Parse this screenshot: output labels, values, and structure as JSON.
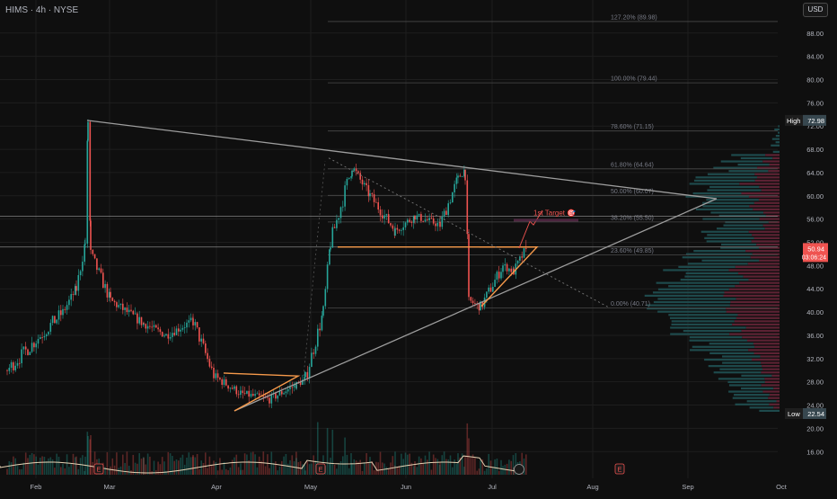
{
  "header": {
    "symbol_title": "HIMS · 4h · NYSE",
    "currency": "USD"
  },
  "colors": {
    "background": "#0f0f0f",
    "grid": "#1e1e1e",
    "up_candle": "#26a69a",
    "down_candle": "#ef5350",
    "trendline": "#9e9e9e",
    "pattern": "#f79a4b",
    "fib_line": "#4a4a4a",
    "target_text": "#ef5350",
    "price_badge": "#ef5350",
    "volume_profile_up": "#1e4a4c",
    "volume_profile_down": "#5c2233"
  },
  "chart_data": {
    "type": "candlestick",
    "symbol": "HIMS",
    "timeframe": "4h",
    "exchange": "NYSE",
    "currency": "USD",
    "x_axis": {
      "tick_labels": [
        "Feb",
        "Mar",
        "Apr",
        "May",
        "Jun",
        "Jul",
        "Aug",
        "Sep",
        "Oct"
      ]
    },
    "y_axis": {
      "tick_labels": [
        "88.00",
        "84.00",
        "80.00",
        "76.00",
        "72.00",
        "68.00",
        "64.00",
        "60.00",
        "56.00",
        "52.00",
        "48.00",
        "44.00",
        "40.00",
        "36.00",
        "32.00",
        "28.00",
        "24.00",
        "20.00",
        "16.00"
      ],
      "range": [
        14,
        91
      ],
      "scale": "linear"
    },
    "grid": true,
    "price_path_anchors": [
      [
        "Feb",
        30.0
      ],
      [
        "Feb",
        40.0
      ],
      [
        "Feb",
        44.0
      ],
      [
        "Feb",
        52.0
      ],
      [
        "Feb",
        72.98
      ],
      [
        "Feb",
        50.0
      ],
      [
        "Mar",
        42.0
      ],
      [
        "Mar",
        38.0
      ],
      [
        "Mar",
        36.0
      ],
      [
        "Mar",
        38.5
      ],
      [
        "Apr",
        29.0
      ],
      [
        "Apr",
        26.0
      ],
      [
        "Apr",
        25.0
      ],
      [
        "Apr",
        27.5
      ],
      [
        "May",
        28.5
      ],
      [
        "May",
        40.0
      ],
      [
        "May",
        52.0
      ],
      [
        "May",
        65.0
      ],
      [
        "May",
        60.0
      ],
      [
        "Jun",
        54.0
      ],
      [
        "Jun",
        56.5
      ],
      [
        "Jun",
        55.0
      ],
      [
        "Jun",
        63.0
      ],
      [
        "Jun",
        64.6
      ],
      [
        "Jun",
        42.0
      ],
      [
        "Jul",
        40.8
      ],
      [
        "Jul",
        48.0
      ],
      [
        "Jul",
        47.0
      ],
      [
        "Jul",
        50.94
      ]
    ],
    "fibonacci": [
      {
        "label": "127.20% (89.98)",
        "value": 89.98
      },
      {
        "label": "100.00% (79.44)",
        "value": 79.44
      },
      {
        "label": "78.60% (71.15)",
        "value": 71.15
      },
      {
        "label": "61.80% (64.64)",
        "value": 64.64
      },
      {
        "label": "50.00% (60.07)",
        "value": 60.07
      },
      {
        "label": "38.20% (55.50)",
        "value": 55.5
      },
      {
        "label": "23.60% (49.85)",
        "value": 49.85
      },
      {
        "label": "0.00% (40.71)",
        "value": 40.71
      }
    ],
    "horizontal_levels": [
      56.5,
      51.2
    ],
    "annotations": [
      {
        "text": "1st Target 🎯",
        "value": 56.5
      }
    ],
    "badges": [
      {
        "label": "High",
        "value": "72.98"
      },
      {
        "label": "",
        "value": "50.94",
        "countdown": "03:06:24"
      },
      {
        "label": "Low",
        "value": "22.54"
      }
    ],
    "event_markers": [
      {
        "text": "E",
        "month": "Feb"
      },
      {
        "text": "E",
        "month": "May"
      },
      {
        "text": "E",
        "month": "Aug"
      }
    ],
    "trendlines": [
      {
        "name": "upper",
        "from": [
          "Feb",
          72.98
        ],
        "to": [
          "Sep",
          59.5
        ]
      },
      {
        "name": "lower",
        "from": [
          "Apr",
          23.0
        ],
        "to": [
          "Sep",
          59.5
        ]
      }
    ],
    "patterns": [
      {
        "name": "apr-triangle",
        "points": [
          [
            "Apr",
            29.5
          ],
          [
            "Apr",
            23.0
          ],
          [
            "May",
            29.0
          ]
        ]
      },
      {
        "name": "jul-triangle",
        "points": [
          [
            "Jul",
            51.2
          ],
          [
            "Jul",
            41.0
          ],
          [
            "Jul",
            51.2
          ]
        ]
      },
      {
        "name": "may-flag",
        "from": [
          "May",
          51.2
        ],
        "to": [
          "Jul",
          51.2
        ]
      }
    ]
  }
}
